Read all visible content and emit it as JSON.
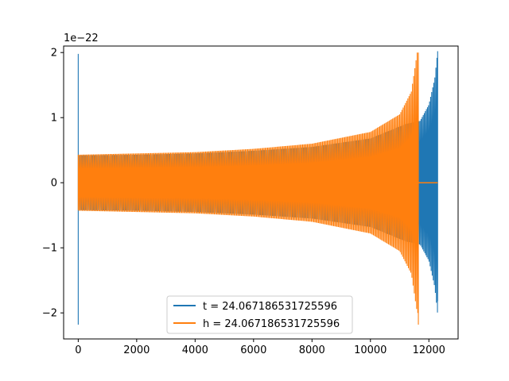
{
  "chart_data": {
    "type": "line",
    "title": "",
    "xlabel": "",
    "ylabel": "",
    "offset_text": "1e−22",
    "xlim": [
      -500,
      13000
    ],
    "ylim": [
      -2.4,
      2.1
    ],
    "x_ticks": [
      0,
      2000,
      4000,
      6000,
      8000,
      10000,
      12000
    ],
    "x_tick_labels": [
      "0",
      "2000",
      "4000",
      "6000",
      "8000",
      "10000",
      "12000"
    ],
    "y_ticks": [
      -2,
      -1,
      0,
      1,
      2
    ],
    "y_tick_labels": [
      "−2",
      "−1",
      "0",
      "1",
      "2"
    ],
    "grid": false,
    "legend_position": "lower-center",
    "series": [
      {
        "name": "t = 24.067186531725596",
        "color": "#1f77b4",
        "start_spike": {
          "x": 0,
          "min": -2.18,
          "max": 1.98
        },
        "amplitude_envelope": [
          [
            0,
            0.42
          ],
          [
            2000,
            0.43
          ],
          [
            4000,
            0.45
          ],
          [
            6000,
            0.49
          ],
          [
            8000,
            0.55
          ],
          [
            10000,
            0.68
          ],
          [
            11200,
            0.9
          ],
          [
            11700,
            0.95
          ],
          [
            12000,
            1.2
          ],
          [
            12200,
            1.6
          ],
          [
            12300,
            2.02
          ]
        ],
        "end_x": 12300,
        "end_min": -1.82
      },
      {
        "name": "h = 24.067186531725596",
        "color": "#ff7f0e",
        "start_spike": {
          "x": 0,
          "min": -0.42,
          "max": 0.42
        },
        "amplitude_envelope": [
          [
            0,
            0.43
          ],
          [
            2000,
            0.45
          ],
          [
            4000,
            0.47
          ],
          [
            6000,
            0.52
          ],
          [
            8000,
            0.6
          ],
          [
            10000,
            0.78
          ],
          [
            11000,
            1.05
          ],
          [
            11400,
            1.4
          ],
          [
            11600,
            2.0
          ]
        ],
        "end_x": 11640,
        "end_min": -2.18,
        "flat_tail": {
          "from": 11650,
          "to": 12300,
          "value": 0
        }
      }
    ]
  }
}
